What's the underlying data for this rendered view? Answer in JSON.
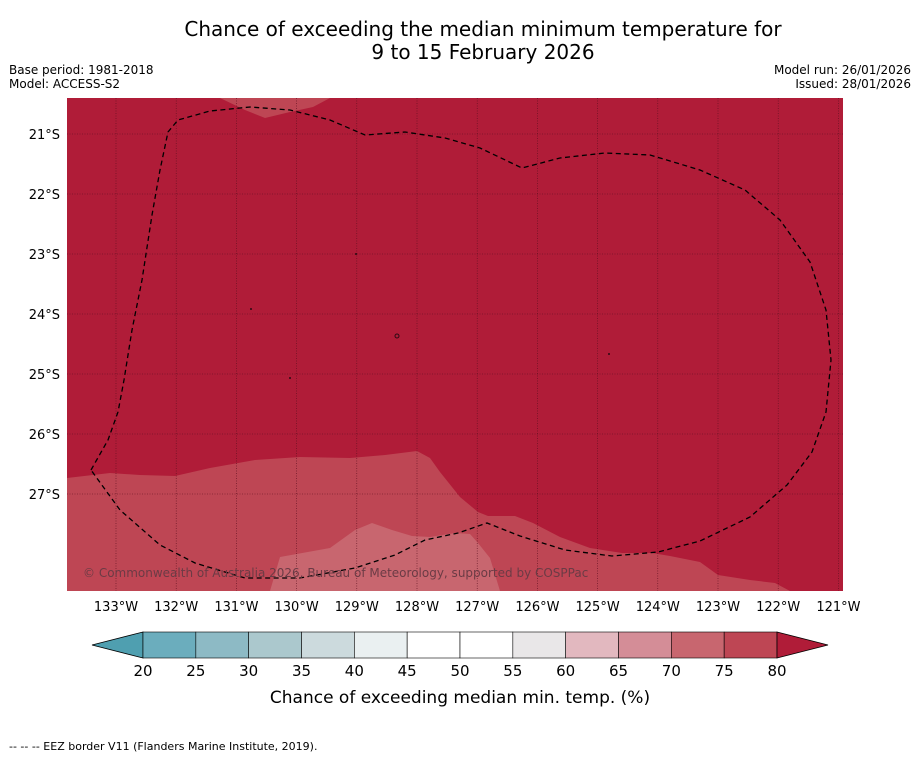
{
  "title": {
    "line1": "Chance of exceeding the median minimum temperature for",
    "line2": "9 to 15 February 2026"
  },
  "meta_left": {
    "base_period": "Base period: 1981-2018",
    "model": "Model: ACCESS-S2"
  },
  "meta_right": {
    "model_run": "Model run: 26/01/2026",
    "issued": "Issued: 28/01/2026"
  },
  "map": {
    "lat_labels": [
      "21°S",
      "22°S",
      "23°S",
      "24°S",
      "25°S",
      "26°S",
      "27°S"
    ],
    "lon_labels": [
      "133°W",
      "132°W",
      "131°W",
      "130°W",
      "129°W",
      "128°W",
      "127°W",
      "126°W",
      "125°W",
      "124°W",
      "123°W",
      "122°W",
      "121°W"
    ],
    "copyright": "© Commonwealth of Australia 2026, Bureau of Meteorology, supported by COSPPac"
  },
  "colorbar": {
    "ticks": [
      "20",
      "25",
      "30",
      "35",
      "40",
      "45",
      "50",
      "55",
      "60",
      "65",
      "70",
      "75",
      "80"
    ],
    "label": "Chance of exceeding median min. temp. (%)"
  },
  "colors": {
    "bin_under20": "#4f9fb0",
    "bin_20_25": "#6badbd",
    "bin_25_30": "#8dbac5",
    "bin_30_35": "#abc8cd",
    "bin_35_40": "#ccdadd",
    "bin_40_45": "#eaf0f1",
    "bin_45_50": "#ffffff",
    "bin_50_55": "#ffffff",
    "bin_55_60": "#e9e7e8",
    "bin_60_65": "#e2b8bf",
    "bin_65_70": "#d48d97",
    "bin_70_75": "#c8666f",
    "bin_75_80": "#be4654",
    "bin_over80": "#b01c38"
  },
  "footer": {
    "eez_legend": "--  --  -- EEZ border V11 (Flanders Marine Institute, 2019)."
  }
}
